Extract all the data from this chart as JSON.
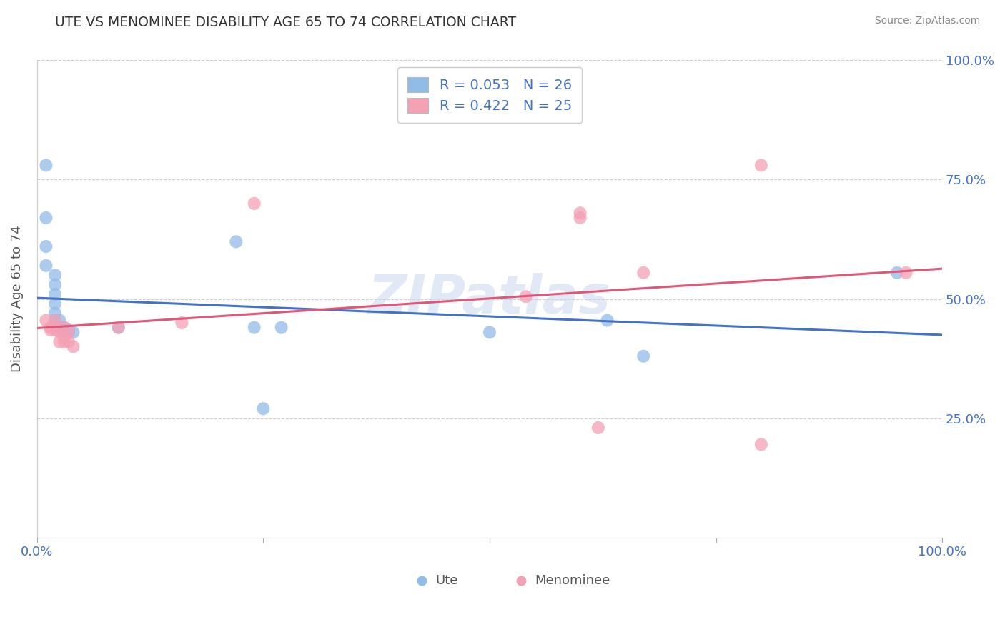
{
  "title": "UTE VS MENOMINEE DISABILITY AGE 65 TO 74 CORRELATION CHART",
  "source": "Source: ZipAtlas.com",
  "xlabel_label": "Ute",
  "ylabel_label": "Menominee",
  "axis_ylabel": "Disability Age 65 to 74",
  "ute_R": "0.053",
  "ute_N": "26",
  "men_R": "0.422",
  "men_N": "25",
  "ute_color": "#92bce8",
  "men_color": "#f4a0b5",
  "ute_line_color": "#4472c4",
  "men_line_color": "#e05878",
  "watermark": "ZIPatlas",
  "ute_points": [
    [
      0.01,
      0.78
    ],
    [
      0.01,
      0.67
    ],
    [
      0.01,
      0.61
    ],
    [
      0.01,
      0.57
    ],
    [
      0.02,
      0.55
    ],
    [
      0.02,
      0.53
    ],
    [
      0.02,
      0.51
    ],
    [
      0.02,
      0.49
    ],
    [
      0.02,
      0.47
    ],
    [
      0.02,
      0.455
    ],
    [
      0.025,
      0.455
    ],
    [
      0.025,
      0.44
    ],
    [
      0.03,
      0.44
    ],
    [
      0.03,
      0.435
    ],
    [
      0.035,
      0.435
    ],
    [
      0.035,
      0.43
    ],
    [
      0.04,
      0.43
    ],
    [
      0.09,
      0.44
    ],
    [
      0.22,
      0.62
    ],
    [
      0.24,
      0.44
    ],
    [
      0.25,
      0.27
    ],
    [
      0.27,
      0.44
    ],
    [
      0.5,
      0.43
    ],
    [
      0.63,
      0.455
    ],
    [
      0.67,
      0.38
    ],
    [
      0.95,
      0.555
    ]
  ],
  "men_points": [
    [
      0.01,
      0.455
    ],
    [
      0.015,
      0.44
    ],
    [
      0.015,
      0.435
    ],
    [
      0.02,
      0.455
    ],
    [
      0.02,
      0.44
    ],
    [
      0.02,
      0.435
    ],
    [
      0.025,
      0.43
    ],
    [
      0.025,
      0.41
    ],
    [
      0.03,
      0.44
    ],
    [
      0.03,
      0.42
    ],
    [
      0.03,
      0.41
    ],
    [
      0.035,
      0.43
    ],
    [
      0.035,
      0.41
    ],
    [
      0.04,
      0.4
    ],
    [
      0.09,
      0.44
    ],
    [
      0.16,
      0.45
    ],
    [
      0.24,
      0.7
    ],
    [
      0.54,
      0.505
    ],
    [
      0.6,
      0.67
    ],
    [
      0.6,
      0.68
    ],
    [
      0.62,
      0.23
    ],
    [
      0.67,
      0.555
    ],
    [
      0.8,
      0.78
    ],
    [
      0.8,
      0.195
    ],
    [
      0.96,
      0.555
    ]
  ]
}
